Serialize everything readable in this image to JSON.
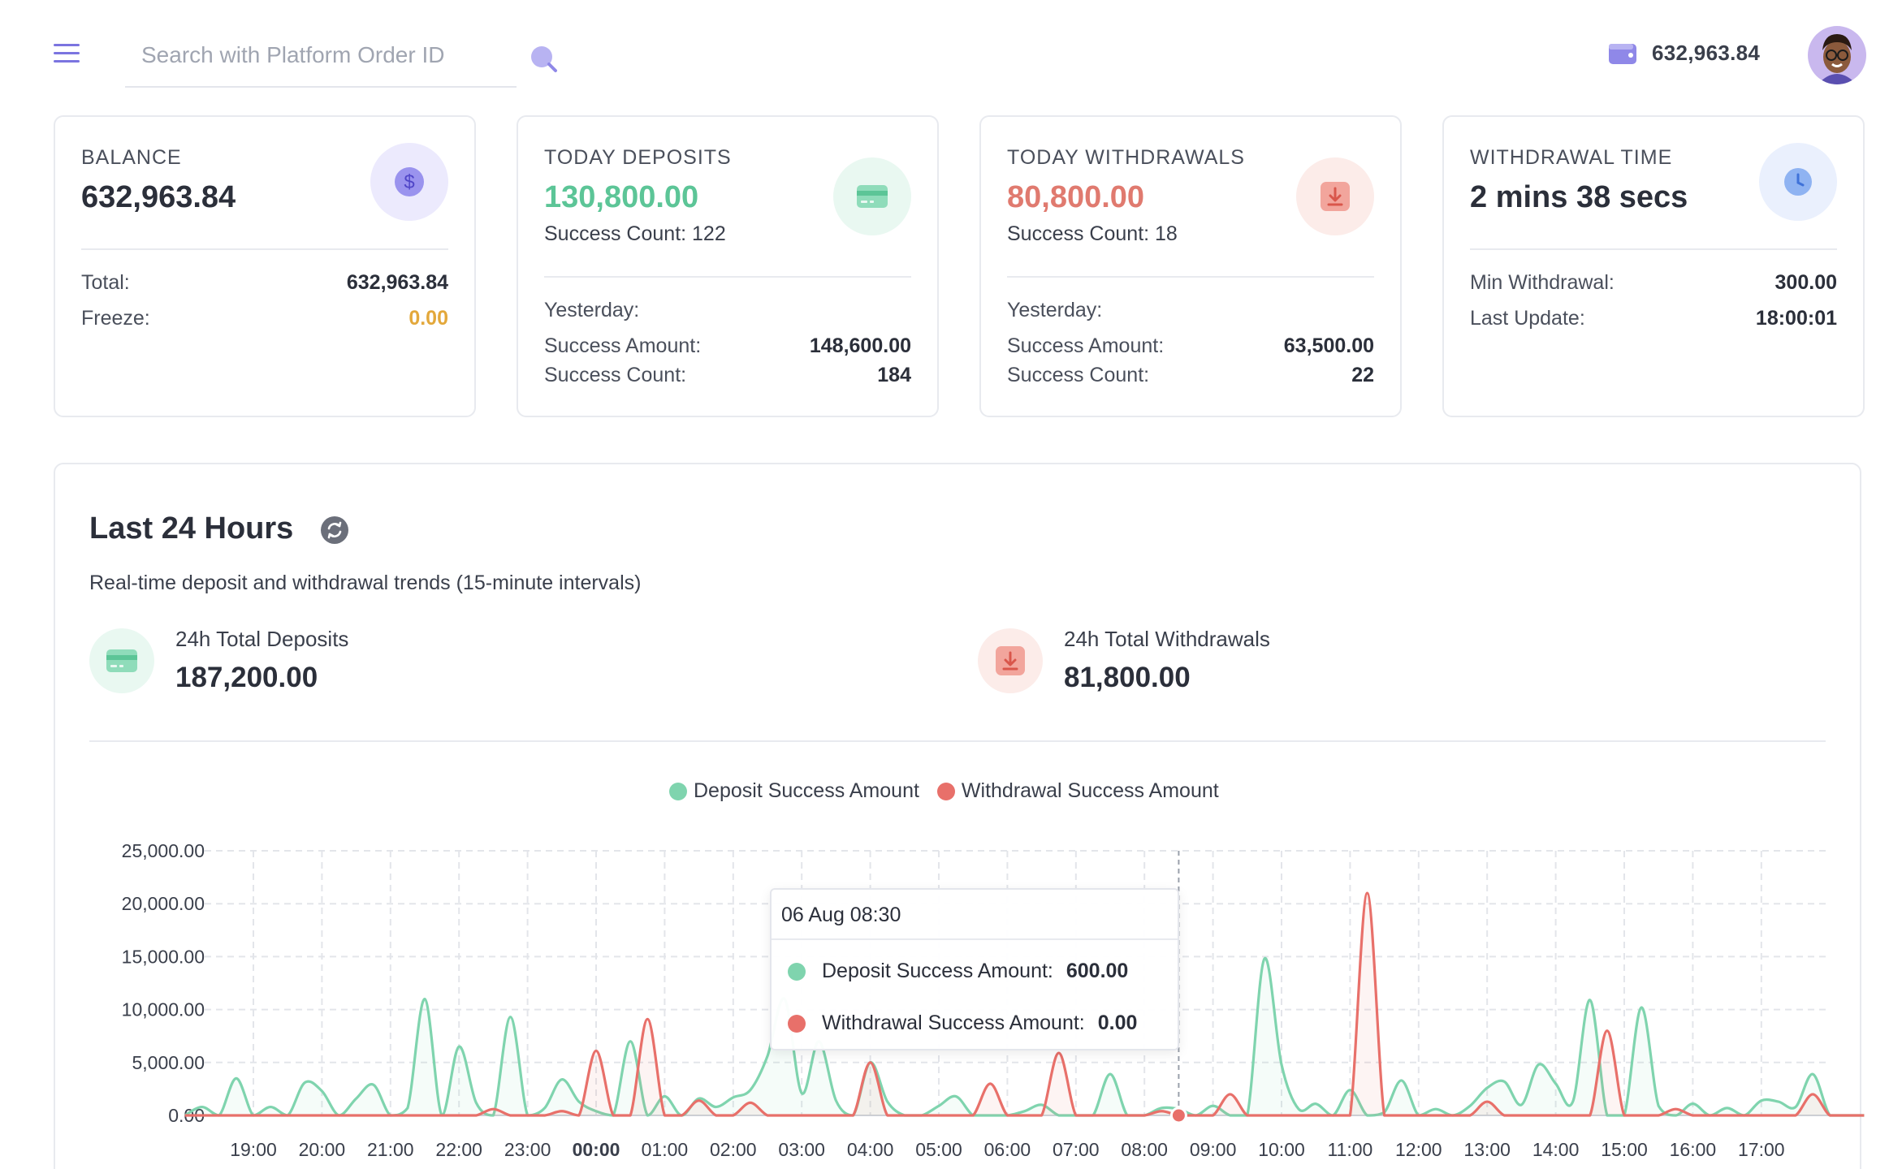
{
  "header": {
    "search_placeholder": "Search with Platform Order ID",
    "wallet_balance": "632,963.84",
    "icons": {
      "menu": "hamburger-icon",
      "search": "search-icon",
      "wallet": "wallet-icon"
    }
  },
  "cards": {
    "balance": {
      "title": "BALANCE",
      "value": "632,963.84",
      "total_label": "Total:",
      "total_value": "632,963.84",
      "freeze_label": "Freeze:",
      "freeze_value": "0.00"
    },
    "deposits": {
      "title": "TODAY DEPOSITS",
      "value": "130,800.00",
      "success_count": "Success Count: 122",
      "yesterday_label": "Yesterday:",
      "amount_label": "Success Amount:",
      "amount_value": "148,600.00",
      "count_label": "Success Count:",
      "count_value": "184"
    },
    "withdrawals": {
      "title": "TODAY WITHDRAWALS",
      "value": "80,800.00",
      "success_count": "Success Count: 18",
      "yesterday_label": "Yesterday:",
      "amount_label": "Success Amount:",
      "amount_value": "63,500.00",
      "count_label": "Success Count:",
      "count_value": "22"
    },
    "withdrawal_time": {
      "title": "WITHDRAWAL TIME",
      "value": "2 mins 38 secs",
      "min_label": "Min Withdrawal:",
      "min_value": "300.00",
      "update_label": "Last Update:",
      "update_value": "18:00:01"
    }
  },
  "panel": {
    "title": "Last 24 Hours",
    "subtitle": "Real-time deposit and withdrawal trends (15-minute intervals)",
    "total_deposits_label": "24h Total Deposits",
    "total_deposits_value": "187,200.00",
    "total_withdrawals_label": "24h Total Withdrawals",
    "total_withdrawals_value": "81,800.00"
  },
  "colors": {
    "deposit": "#7fd4ae",
    "withdrawal": "#e8706a",
    "accent": "#7b74e0",
    "freeze": "#e3a83b"
  },
  "tooltip": {
    "title": "06 Aug 08:30",
    "deposit_label": "Deposit Success Amount:",
    "deposit_value": "600.00",
    "withdrawal_label": "Withdrawal Success Amount:",
    "withdrawal_value": "0.00"
  },
  "chart_data": {
    "type": "line",
    "y_tick_labels": [
      "25,000.00",
      "20,000.00",
      "15,000.00",
      "10,000.00",
      "5,000.00",
      "0.00"
    ],
    "ylim": [
      0,
      25000
    ],
    "x_tick_labels": [
      "19:00",
      "20:00",
      "21:00",
      "22:00",
      "23:00",
      "00:00",
      "01:00",
      "02:00",
      "03:00",
      "04:00",
      "05:00",
      "06:00",
      "07:00",
      "08:00",
      "09:00",
      "10:00",
      "11:00",
      "12:00",
      "13:00",
      "14:00",
      "15:00",
      "16:00",
      "17:00"
    ],
    "bold_tick": "00:00",
    "grid": true,
    "legend_position": "top-center",
    "highlighted_time": "06 Aug 08:30",
    "series": [
      {
        "name": "Deposit Success Amount",
        "color": "#7fd4ae",
        "peaks": [
          {
            "t": 18.25,
            "v": 800
          },
          {
            "t": 18.75,
            "v": 3500
          },
          {
            "t": 19.25,
            "v": 800
          },
          {
            "t": 19.75,
            "v": 3100
          },
          {
            "t": 20.0,
            "v": 2300
          },
          {
            "t": 20.5,
            "v": 1600
          },
          {
            "t": 20.75,
            "v": 2900
          },
          {
            "t": 21.25,
            "v": 700
          },
          {
            "t": 21.5,
            "v": 11000
          },
          {
            "t": 22.0,
            "v": 6500
          },
          {
            "t": 22.25,
            "v": 1200
          },
          {
            "t": 22.75,
            "v": 9300
          },
          {
            "t": 23.25,
            "v": 700
          },
          {
            "t": 23.5,
            "v": 3400
          },
          {
            "t": 23.75,
            "v": 1300
          },
          {
            "t": 24.0,
            "v": 400
          },
          {
            "t": 24.5,
            "v": 7000
          },
          {
            "t": 25.0,
            "v": 1800
          },
          {
            "t": 25.5,
            "v": 1600
          },
          {
            "t": 25.75,
            "v": 800
          },
          {
            "t": 26.0,
            "v": 1700
          },
          {
            "t": 26.25,
            "v": 2400
          },
          {
            "t": 26.5,
            "v": 5600
          },
          {
            "t": 26.75,
            "v": 11000
          },
          {
            "t": 27.0,
            "v": 2100
          },
          {
            "t": 27.25,
            "v": 7000
          },
          {
            "t": 27.5,
            "v": 1400
          },
          {
            "t": 28.0,
            "v": 5000
          },
          {
            "t": 28.25,
            "v": 1300
          },
          {
            "t": 29.0,
            "v": 900
          },
          {
            "t": 29.25,
            "v": 1800
          },
          {
            "t": 30.25,
            "v": 400
          },
          {
            "t": 30.5,
            "v": 1000
          },
          {
            "t": 31.5,
            "v": 3900
          },
          {
            "t": 32.25,
            "v": 700
          },
          {
            "t": 32.5,
            "v": 600
          },
          {
            "t": 33.0,
            "v": 900
          },
          {
            "t": 33.75,
            "v": 14800
          },
          {
            "t": 34.0,
            "v": 4800
          },
          {
            "t": 34.25,
            "v": 600
          },
          {
            "t": 34.5,
            "v": 1100
          },
          {
            "t": 35.0,
            "v": 2400
          },
          {
            "t": 35.5,
            "v": 300
          },
          {
            "t": 35.75,
            "v": 3300
          },
          {
            "t": 36.25,
            "v": 600
          },
          {
            "t": 36.75,
            "v": 900
          },
          {
            "t": 37.0,
            "v": 2600
          },
          {
            "t": 37.25,
            "v": 3200
          },
          {
            "t": 37.5,
            "v": 1000
          },
          {
            "t": 37.75,
            "v": 4800
          },
          {
            "t": 38.0,
            "v": 3000
          },
          {
            "t": 38.25,
            "v": 1300
          },
          {
            "t": 38.5,
            "v": 10900
          },
          {
            "t": 39.25,
            "v": 10200
          },
          {
            "t": 39.5,
            "v": 900
          },
          {
            "t": 40.0,
            "v": 1100
          },
          {
            "t": 40.5,
            "v": 700
          },
          {
            "t": 41.0,
            "v": 1400
          },
          {
            "t": 41.25,
            "v": 1300
          },
          {
            "t": 41.5,
            "v": 800
          },
          {
            "t": 41.75,
            "v": 3900
          }
        ]
      },
      {
        "name": "Withdrawal Success Amount",
        "color": "#e8706a",
        "peaks": [
          {
            "t": 22.5,
            "v": 600
          },
          {
            "t": 23.5,
            "v": 400
          },
          {
            "t": 24.0,
            "v": 6100
          },
          {
            "t": 24.75,
            "v": 9100
          },
          {
            "t": 25.5,
            "v": 1400
          },
          {
            "t": 26.25,
            "v": 1200
          },
          {
            "t": 28.0,
            "v": 5000
          },
          {
            "t": 29.75,
            "v": 3000
          },
          {
            "t": 30.75,
            "v": 5900
          },
          {
            "t": 32.25,
            "v": 400
          },
          {
            "t": 33.25,
            "v": 2000
          },
          {
            "t": 35.25,
            "v": 21000
          },
          {
            "t": 37.0,
            "v": 1300
          },
          {
            "t": 38.75,
            "v": 8000
          },
          {
            "t": 39.75,
            "v": 600
          },
          {
            "t": 41.75,
            "v": 2000
          }
        ]
      }
    ]
  }
}
